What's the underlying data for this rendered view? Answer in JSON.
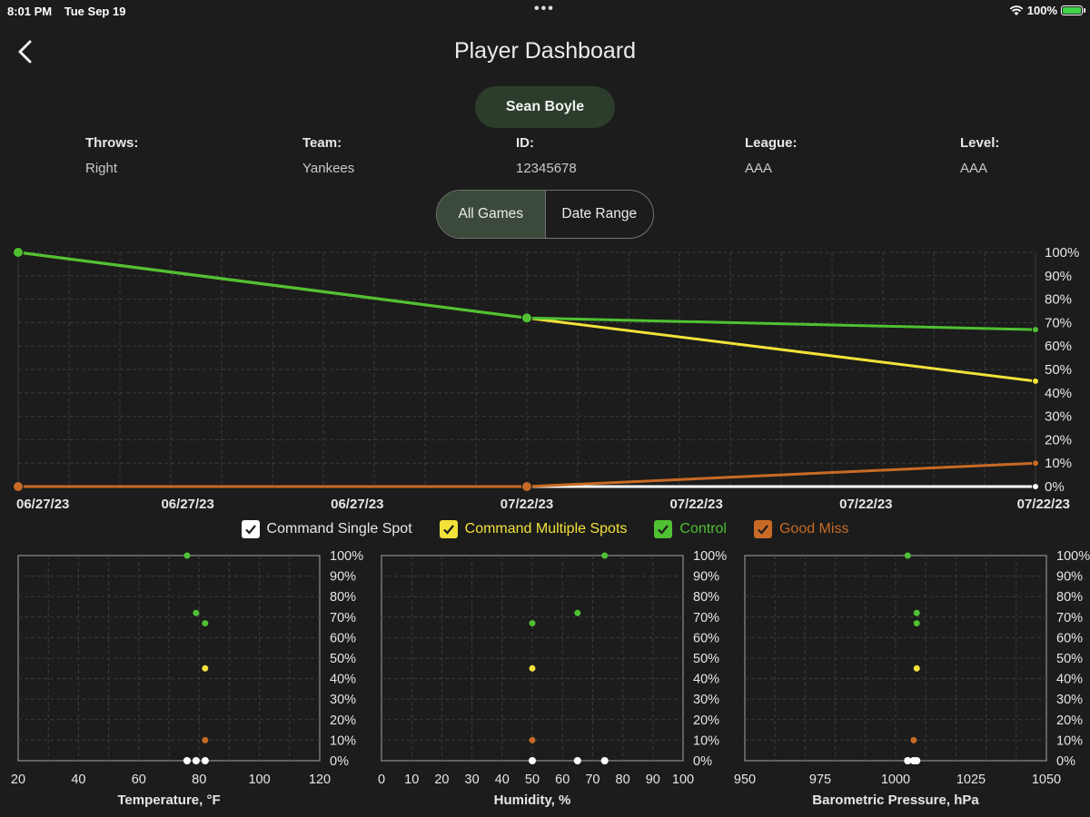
{
  "status_bar": {
    "time": "8:01 PM",
    "date": "Tue Sep 19",
    "battery": "100%"
  },
  "header": {
    "title": "Player Dashboard"
  },
  "player": {
    "name": "Sean Boyle",
    "fields": [
      {
        "label": "Throws:",
        "value": "Right"
      },
      {
        "label": "Team:",
        "value": "Yankees"
      },
      {
        "label": "ID:",
        "value": "12345678"
      },
      {
        "label": "League:",
        "value": "AAA"
      },
      {
        "label": "Level:",
        "value": "AAA"
      }
    ]
  },
  "filter": {
    "options": [
      "All Games",
      "Date Range"
    ],
    "selected": "All Games"
  },
  "colors": {
    "white": "#ffffff",
    "yellow": "#f3e13a",
    "green": "#4fc132",
    "orange": "#c86a26",
    "grid": "#3a3d3a"
  },
  "legend": [
    {
      "label": "Command Single Spot",
      "color": "#ffffff",
      "checked": true
    },
    {
      "label": "Command Multiple Spots",
      "color": "#f3e13a",
      "checked": true
    },
    {
      "label": "Control",
      "color": "#4fc132",
      "checked": true
    },
    {
      "label": "Good Miss",
      "color": "#c86a26",
      "checked": true
    }
  ],
  "chart_data": [
    {
      "type": "line",
      "x_tick_labels": [
        "06/27/23",
        "06/27/23",
        "06/27/23",
        "07/22/23",
        "07/22/23",
        "07/22/23",
        "07/22/23"
      ],
      "y_tick_labels": [
        "100%",
        "90%",
        "80%",
        "70%",
        "60%",
        "50%",
        "40%",
        "30%",
        "20%",
        "10%",
        "0%"
      ],
      "ylim": [
        0,
        100
      ],
      "grid": true,
      "series": [
        {
          "name": "Command Single Spot",
          "color": "#ffffff",
          "points": [
            [
              0,
              0
            ],
            [
              1,
              0
            ],
            [
              2,
              0
            ]
          ]
        },
        {
          "name": "Command Multiple Spots",
          "color": "#f3e13a",
          "points": [
            [
              0,
              100
            ],
            [
              1,
              72
            ],
            [
              2,
              45
            ]
          ]
        },
        {
          "name": "Control",
          "color": "#4fc132",
          "points": [
            [
              0,
              100
            ],
            [
              1,
              72
            ],
            [
              2,
              67
            ]
          ]
        },
        {
          "name": "Good Miss",
          "color": "#c86a26",
          "points": [
            [
              0,
              0
            ],
            [
              1,
              0
            ],
            [
              2,
              10
            ]
          ]
        }
      ]
    },
    {
      "type": "scatter",
      "xlabel": "Temperature, °F",
      "xlim": [
        20,
        120
      ],
      "x_ticks": [
        20,
        40,
        60,
        80,
        100,
        120
      ],
      "ylim": [
        0,
        100
      ],
      "y_tick_labels": [
        "100%",
        "90%",
        "80%",
        "70%",
        "60%",
        "50%",
        "40%",
        "30%",
        "20%",
        "10%",
        "0%"
      ],
      "series": [
        {
          "name": "Command Single Spot",
          "color": "#ffffff",
          "points": [
            [
              76,
              0
            ],
            [
              79,
              0
            ],
            [
              82,
              0
            ]
          ]
        },
        {
          "name": "Command Multiple Spots",
          "color": "#f3e13a",
          "points": [
            [
              82,
              45
            ]
          ]
        },
        {
          "name": "Control",
          "color": "#4fc132",
          "points": [
            [
              76,
              100
            ],
            [
              79,
              72
            ],
            [
              82,
              67
            ]
          ]
        },
        {
          "name": "Good Miss",
          "color": "#c86a26",
          "points": [
            [
              76,
              0
            ],
            [
              79,
              0
            ],
            [
              82,
              10
            ]
          ]
        }
      ]
    },
    {
      "type": "scatter",
      "xlabel": "Humidity, %",
      "xlim": [
        0,
        100
      ],
      "x_ticks": [
        0,
        10,
        20,
        30,
        40,
        50,
        60,
        70,
        80,
        90,
        100
      ],
      "ylim": [
        0,
        100
      ],
      "y_tick_labels": [
        "100%",
        "90%",
        "80%",
        "70%",
        "60%",
        "50%",
        "40%",
        "30%",
        "20%",
        "10%",
        "0%"
      ],
      "series": [
        {
          "name": "Command Single Spot",
          "color": "#ffffff",
          "points": [
            [
              50,
              0
            ],
            [
              65,
              0
            ],
            [
              74,
              0
            ]
          ]
        },
        {
          "name": "Command Multiple Spots",
          "color": "#f3e13a",
          "points": [
            [
              50,
              45
            ]
          ]
        },
        {
          "name": "Control",
          "color": "#4fc132",
          "points": [
            [
              74,
              100
            ],
            [
              65,
              72
            ],
            [
              50,
              67
            ]
          ]
        },
        {
          "name": "Good Miss",
          "color": "#c86a26",
          "points": [
            [
              65,
              0
            ],
            [
              74,
              0
            ],
            [
              50,
              10
            ]
          ]
        }
      ]
    },
    {
      "type": "scatter",
      "xlabel": "Barometric Pressure, hPa",
      "xlim": [
        950,
        1050
      ],
      "x_ticks": [
        950,
        975,
        1000,
        1025,
        1050
      ],
      "ylim": [
        0,
        100
      ],
      "y_tick_labels": [
        "100%",
        "90%",
        "80%",
        "70%",
        "60%",
        "50%",
        "40%",
        "30%",
        "20%",
        "10%",
        "0%"
      ],
      "series": [
        {
          "name": "Command Single Spot",
          "color": "#ffffff",
          "points": [
            [
              1004,
              0
            ],
            [
              1006,
              0
            ],
            [
              1007,
              0
            ]
          ]
        },
        {
          "name": "Command Multiple Spots",
          "color": "#f3e13a",
          "points": [
            [
              1007,
              45
            ]
          ]
        },
        {
          "name": "Control",
          "color": "#4fc132",
          "points": [
            [
              1004,
              100
            ],
            [
              1007,
              72
            ],
            [
              1007,
              67
            ]
          ]
        },
        {
          "name": "Good Miss",
          "color": "#c86a26",
          "points": [
            [
              1004,
              0
            ],
            [
              1006,
              0
            ],
            [
              1006,
              10
            ]
          ]
        }
      ]
    }
  ]
}
